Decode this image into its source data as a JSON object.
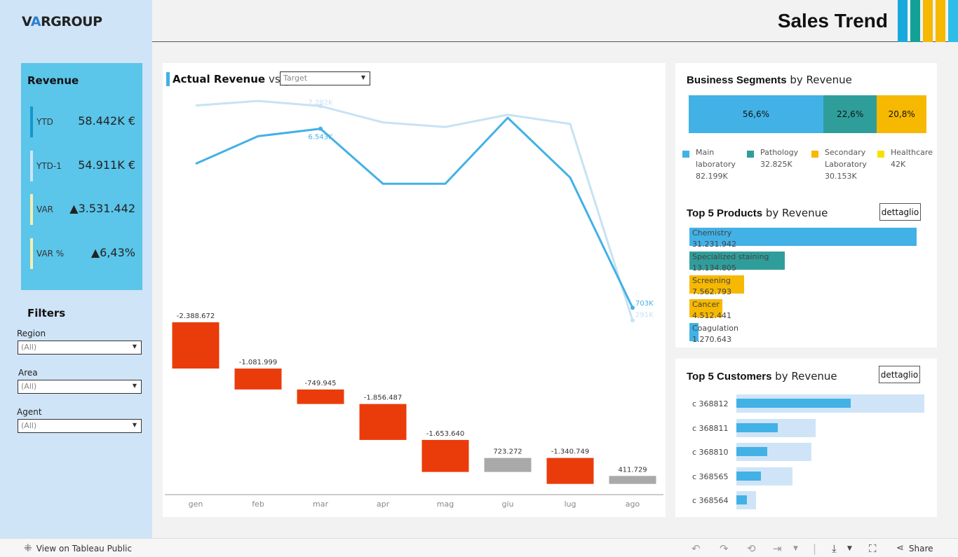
{
  "header": {
    "logo_prefix": "V",
    "logo_v": "A",
    "logo_rest": "RGROUP",
    "title": "Sales Trend",
    "stripe_colors": [
      "#1aa9dc",
      "#13a097",
      "#f6b800",
      "#f6b800",
      "#2ebde8"
    ]
  },
  "kpi": {
    "title": "Revenue",
    "rows": [
      {
        "label": "YTD",
        "value": "58.442K €",
        "bar_color": "#1796c9"
      },
      {
        "label": "YTD-1",
        "value": "54.911K €",
        "bar_color": "#cfe4f7"
      },
      {
        "label": "VAR",
        "value": "▲3.531.442",
        "bar_color": "#f6f0b0"
      },
      {
        "label": "VAR %",
        "value": "▲6,43%",
        "bar_color": "#f6f0b0"
      }
    ]
  },
  "filters": {
    "title": "Filters",
    "items": [
      {
        "label": "Region",
        "value": "(All)"
      },
      {
        "label": "Area",
        "value": "(All)"
      },
      {
        "label": "Agent",
        "value": "(All)"
      }
    ]
  },
  "main_chart": {
    "title_actual": "Actual Revenue",
    "title_vs": "vs",
    "target_select": "Target",
    "actual_color": "#42b1e6",
    "target_color": "#c7e2f4",
    "negative_color": "#ea3c0b",
    "positive_color": "#a9a9a9"
  },
  "chart_data": {
    "type": "line",
    "categories": [
      "gen",
      "feb",
      "mar",
      "apr",
      "mag",
      "giu",
      "lug",
      "ago"
    ],
    "series": [
      {
        "name": "Actual Revenue",
        "values": [
          5.4,
          6.3,
          6.543,
          4.75,
          4.75,
          6.9,
          4.95,
          0.703
        ]
      },
      {
        "name": "Target",
        "values": [
          7.3,
          7.45,
          7.282,
          6.75,
          6.6,
          7.0,
          6.7,
          0.291
        ]
      }
    ],
    "point_labels": {
      "mar_actual": "6.543K",
      "mar_target": "7.282K",
      "ago_actual": "703K",
      "ago_target": "291K"
    },
    "variance": [
      {
        "category": "gen",
        "value": -2388672,
        "label": "-2.388.672"
      },
      {
        "category": "feb",
        "value": -1081999,
        "label": "-1.081.999"
      },
      {
        "category": "mar",
        "value": -749945,
        "label": "-749.945"
      },
      {
        "category": "apr",
        "value": -1856487,
        "label": "-1.856.487"
      },
      {
        "category": "mag",
        "value": -1653640,
        "label": "-1.653.640"
      },
      {
        "category": "giu",
        "value": 723272,
        "label": "723.272"
      },
      {
        "category": "lug",
        "value": -1340749,
        "label": "-1.340.749"
      },
      {
        "category": "ago",
        "value": 411729,
        "label": "411.729"
      }
    ]
  },
  "segments": {
    "title_bold": "Business Segments",
    "title_rest": " by Revenue",
    "bars": [
      {
        "pct": "56,6%",
        "share": 56.6,
        "color": "#42b1e6"
      },
      {
        "pct": "22,6%",
        "share": 22.6,
        "color": "#2f9e9b"
      },
      {
        "pct": "20,8%",
        "share": 20.8,
        "color": "#f6b800"
      }
    ],
    "legend": [
      {
        "line1": "Main",
        "line2": "laboratory",
        "line3": "82.199K",
        "color": "#42b1e6"
      },
      {
        "line1": "Pathology",
        "line2": "32.825K",
        "line3": "",
        "color": "#2f9e9b"
      },
      {
        "line1": "Secondary",
        "line2": "Laboratory",
        "line3": "30.153K",
        "color": "#f6b800"
      },
      {
        "line1": "Healthcare",
        "line2": "42K",
        "line3": "",
        "color": "#f6e000"
      }
    ]
  },
  "products": {
    "title_bold": "Top 5 Products",
    "title_rest": " by Revenue",
    "detail": "dettaglio",
    "items": [
      {
        "name": "Chemistry",
        "value": "31.231.942",
        "amount": 31231942,
        "color": "#42b1e6"
      },
      {
        "name": "Specialized staining",
        "value": "13.134.805",
        "amount": 13134805,
        "color": "#2f9e9b"
      },
      {
        "name": "Screening",
        "value": "7.562.793",
        "amount": 7562793,
        "color": "#f6b800"
      },
      {
        "name": "Cancer",
        "value": "4.512.441",
        "amount": 4512441,
        "color": "#f6b800"
      },
      {
        "name": "Coagulation",
        "value": "1.270.643",
        "amount": 1270643,
        "color": "#42b1e6"
      }
    ]
  },
  "customers": {
    "title_bold": "Top 5 Customers",
    "title_rest": " by Revenue",
    "detail": "dettaglio",
    "items": [
      {
        "name": "c 368812",
        "actual": 0.61,
        "total": 1.0
      },
      {
        "name": "c 368811",
        "actual": 0.22,
        "total": 0.42
      },
      {
        "name": "c 368810",
        "actual": 0.165,
        "total": 0.4
      },
      {
        "name": "c 368565",
        "actual": 0.13,
        "total": 0.3
      },
      {
        "name": "c 368564",
        "actual": 0.055,
        "total": 0.105
      }
    ]
  },
  "footer": {
    "tableau_link": "View on Tableau Public",
    "share": "Share"
  }
}
